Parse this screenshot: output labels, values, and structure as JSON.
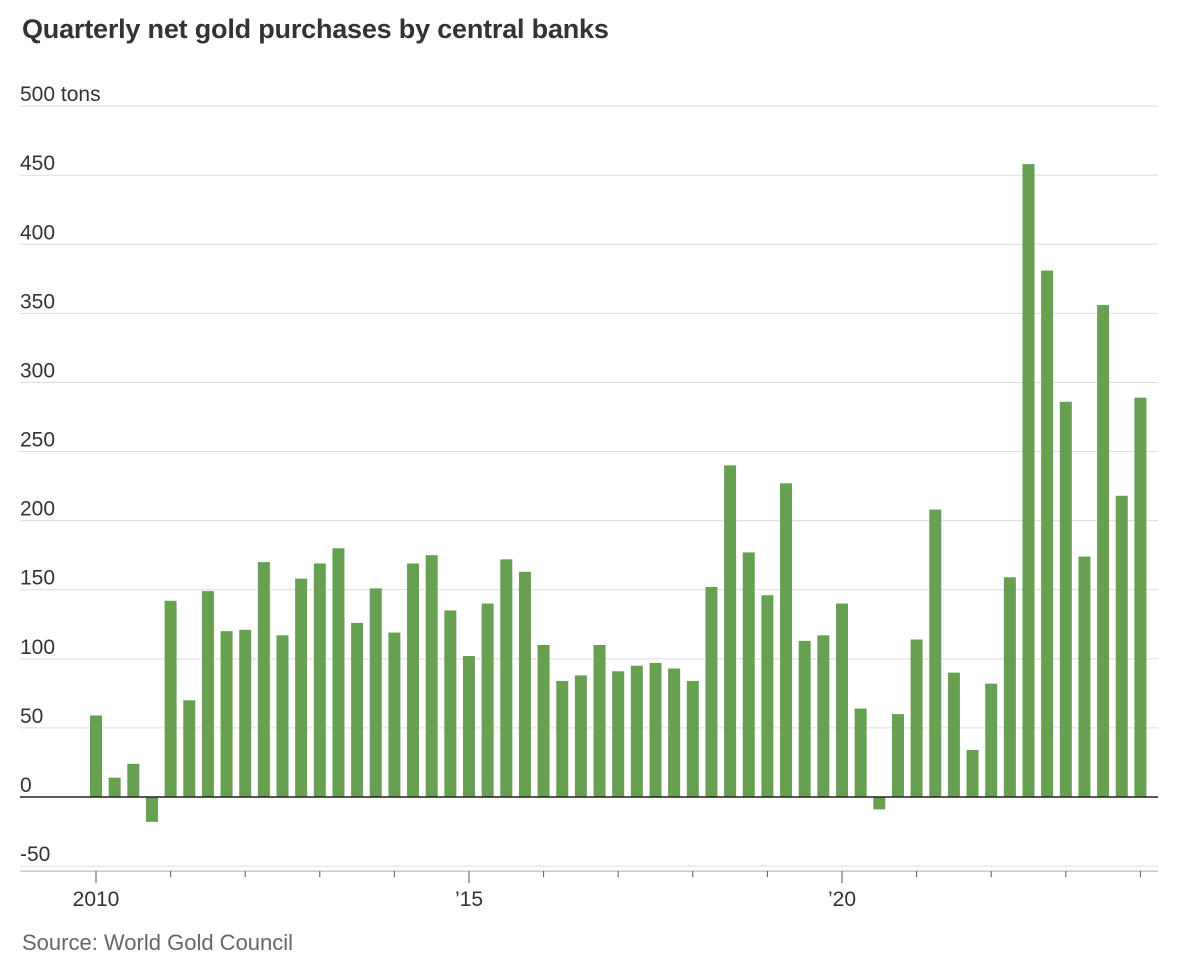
{
  "title": "Quarterly net gold purchases by central banks",
  "source": "Source: World Gold Council",
  "colors": {
    "bar": "#66a050",
    "grid": "#dddddd",
    "axis": "#222222",
    "text": "#333333"
  },
  "chart_data": {
    "type": "bar",
    "title": "Quarterly net gold purchases by central banks",
    "ylabel": "tons",
    "ylim": [
      -50,
      500
    ],
    "yticks": [
      500,
      450,
      400,
      350,
      300,
      250,
      200,
      150,
      100,
      50,
      0,
      -50
    ],
    "ytick_labels": [
      "500 tons",
      "450",
      "400",
      "350",
      "300",
      "250",
      "200",
      "150",
      "100",
      "50",
      "0",
      "-50"
    ],
    "x_start": 2010,
    "x_end": 2024,
    "xtick_labels": [
      {
        "year": 2010,
        "label": "2010"
      },
      {
        "year": 2015,
        "label": "’15"
      },
      {
        "year": 2020,
        "label": "’20"
      }
    ],
    "categories": [
      "2010 Q1",
      "2010 Q2",
      "2010 Q3",
      "2010 Q4",
      "2011 Q1",
      "2011 Q2",
      "2011 Q3",
      "2011 Q4",
      "2012 Q1",
      "2012 Q2",
      "2012 Q3",
      "2012 Q4",
      "2013 Q1",
      "2013 Q2",
      "2013 Q3",
      "2013 Q4",
      "2014 Q1",
      "2014 Q2",
      "2014 Q3",
      "2014 Q4",
      "2015 Q1",
      "2015 Q2",
      "2015 Q3",
      "2015 Q4",
      "2016 Q1",
      "2016 Q2",
      "2016 Q3",
      "2016 Q4",
      "2017 Q1",
      "2017 Q2",
      "2017 Q3",
      "2017 Q4",
      "2018 Q1",
      "2018 Q2",
      "2018 Q3",
      "2018 Q4",
      "2019 Q1",
      "2019 Q2",
      "2019 Q3",
      "2019 Q4",
      "2020 Q1",
      "2020 Q2",
      "2020 Q3",
      "2020 Q4",
      "2021 Q1",
      "2021 Q2",
      "2021 Q3",
      "2021 Q4",
      "2022 Q1",
      "2022 Q2",
      "2022 Q3",
      "2022 Q4",
      "2023 Q1",
      "2023 Q2",
      "2023 Q3",
      "2023 Q4",
      "2024 Q1"
    ],
    "values": [
      59,
      14,
      24,
      -18,
      142,
      70,
      149,
      120,
      121,
      170,
      117,
      158,
      169,
      180,
      126,
      151,
      119,
      169,
      175,
      135,
      102,
      140,
      172,
      163,
      110,
      84,
      88,
      110,
      91,
      95,
      97,
      93,
      84,
      152,
      240,
      177,
      146,
      227,
      113,
      117,
      140,
      64,
      -9,
      60,
      114,
      208,
      90,
      34,
      82,
      159,
      458,
      381,
      286,
      174,
      356,
      218,
      289
    ]
  }
}
